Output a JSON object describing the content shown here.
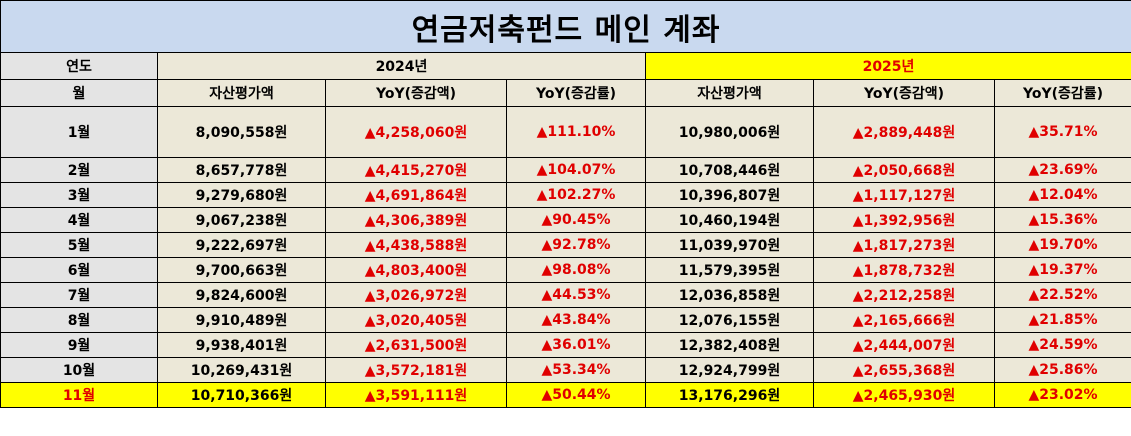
{
  "title": "연금저축펀드 메인 계좌",
  "labels": {
    "year": "연도",
    "month": "월"
  },
  "years": [
    "2024년",
    "2025년"
  ],
  "column_headers": [
    "자산평가액",
    "YoY(증감액)",
    "YoY(증감률)",
    "자산평가액",
    "YoY(증감액)",
    "YoY(증감률)"
  ],
  "rows": [
    {
      "month": "1월",
      "a2024": "8,090,558원",
      "d2024": "▲4,258,060원",
      "p2024": "▲111.10%",
      "a2025": "10,980,006원",
      "d2025": "▲2,889,448원",
      "p2025": "▲35.71%"
    },
    {
      "month": "2월",
      "a2024": "8,657,778원",
      "d2024": "▲4,415,270원",
      "p2024": "▲104.07%",
      "a2025": "10,708,446원",
      "d2025": "▲2,050,668원",
      "p2025": "▲23.69%"
    },
    {
      "month": "3월",
      "a2024": "9,279,680원",
      "d2024": "▲4,691,864원",
      "p2024": "▲102.27%",
      "a2025": "10,396,807원",
      "d2025": "▲1,117,127원",
      "p2025": "▲12.04%"
    },
    {
      "month": "4월",
      "a2024": "9,067,238원",
      "d2024": "▲4,306,389원",
      "p2024": "▲90.45%",
      "a2025": "10,460,194원",
      "d2025": "▲1,392,956원",
      "p2025": "▲15.36%"
    },
    {
      "month": "5월",
      "a2024": "9,222,697원",
      "d2024": "▲4,438,588원",
      "p2024": "▲92.78%",
      "a2025": "11,039,970원",
      "d2025": "▲1,817,273원",
      "p2025": "▲19.70%"
    },
    {
      "month": "6월",
      "a2024": "9,700,663원",
      "d2024": "▲4,803,400원",
      "p2024": "▲98.08%",
      "a2025": "11,579,395원",
      "d2025": "▲1,878,732원",
      "p2025": "▲19.37%"
    },
    {
      "month": "7월",
      "a2024": "9,824,600원",
      "d2024": "▲3,026,972원",
      "p2024": "▲44.53%",
      "a2025": "12,036,858원",
      "d2025": "▲2,212,258원",
      "p2025": "▲22.52%"
    },
    {
      "month": "8월",
      "a2024": "9,910,489원",
      "d2024": "▲3,020,405원",
      "p2024": "▲43.84%",
      "a2025": "12,076,155원",
      "d2025": "▲2,165,666원",
      "p2025": "▲21.85%"
    },
    {
      "month": "9월",
      "a2024": "9,938,401원",
      "d2024": "▲2,631,500원",
      "p2024": "▲36.01%",
      "a2025": "12,382,408원",
      "d2025": "▲2,444,007원",
      "p2025": "▲24.59%"
    },
    {
      "month": "10월",
      "a2024": "10,269,431원",
      "d2024": "▲3,572,181원",
      "p2024": "▲53.34%",
      "a2025": "12,924,799원",
      "d2025": "▲2,655,368원",
      "p2025": "▲25.86%"
    },
    {
      "month": "11월",
      "a2024": "10,710,366원",
      "d2024": "▲3,591,111원",
      "p2024": "▲50.44%",
      "a2025": "13,176,296원",
      "d2025": "▲2,465,930원",
      "p2025": "▲23.02%"
    }
  ],
  "colors": {
    "title_bg": "#c9d9ef",
    "header_bg": "#ece8d8",
    "highlight": "#ffff00",
    "increase": "#e00000"
  }
}
